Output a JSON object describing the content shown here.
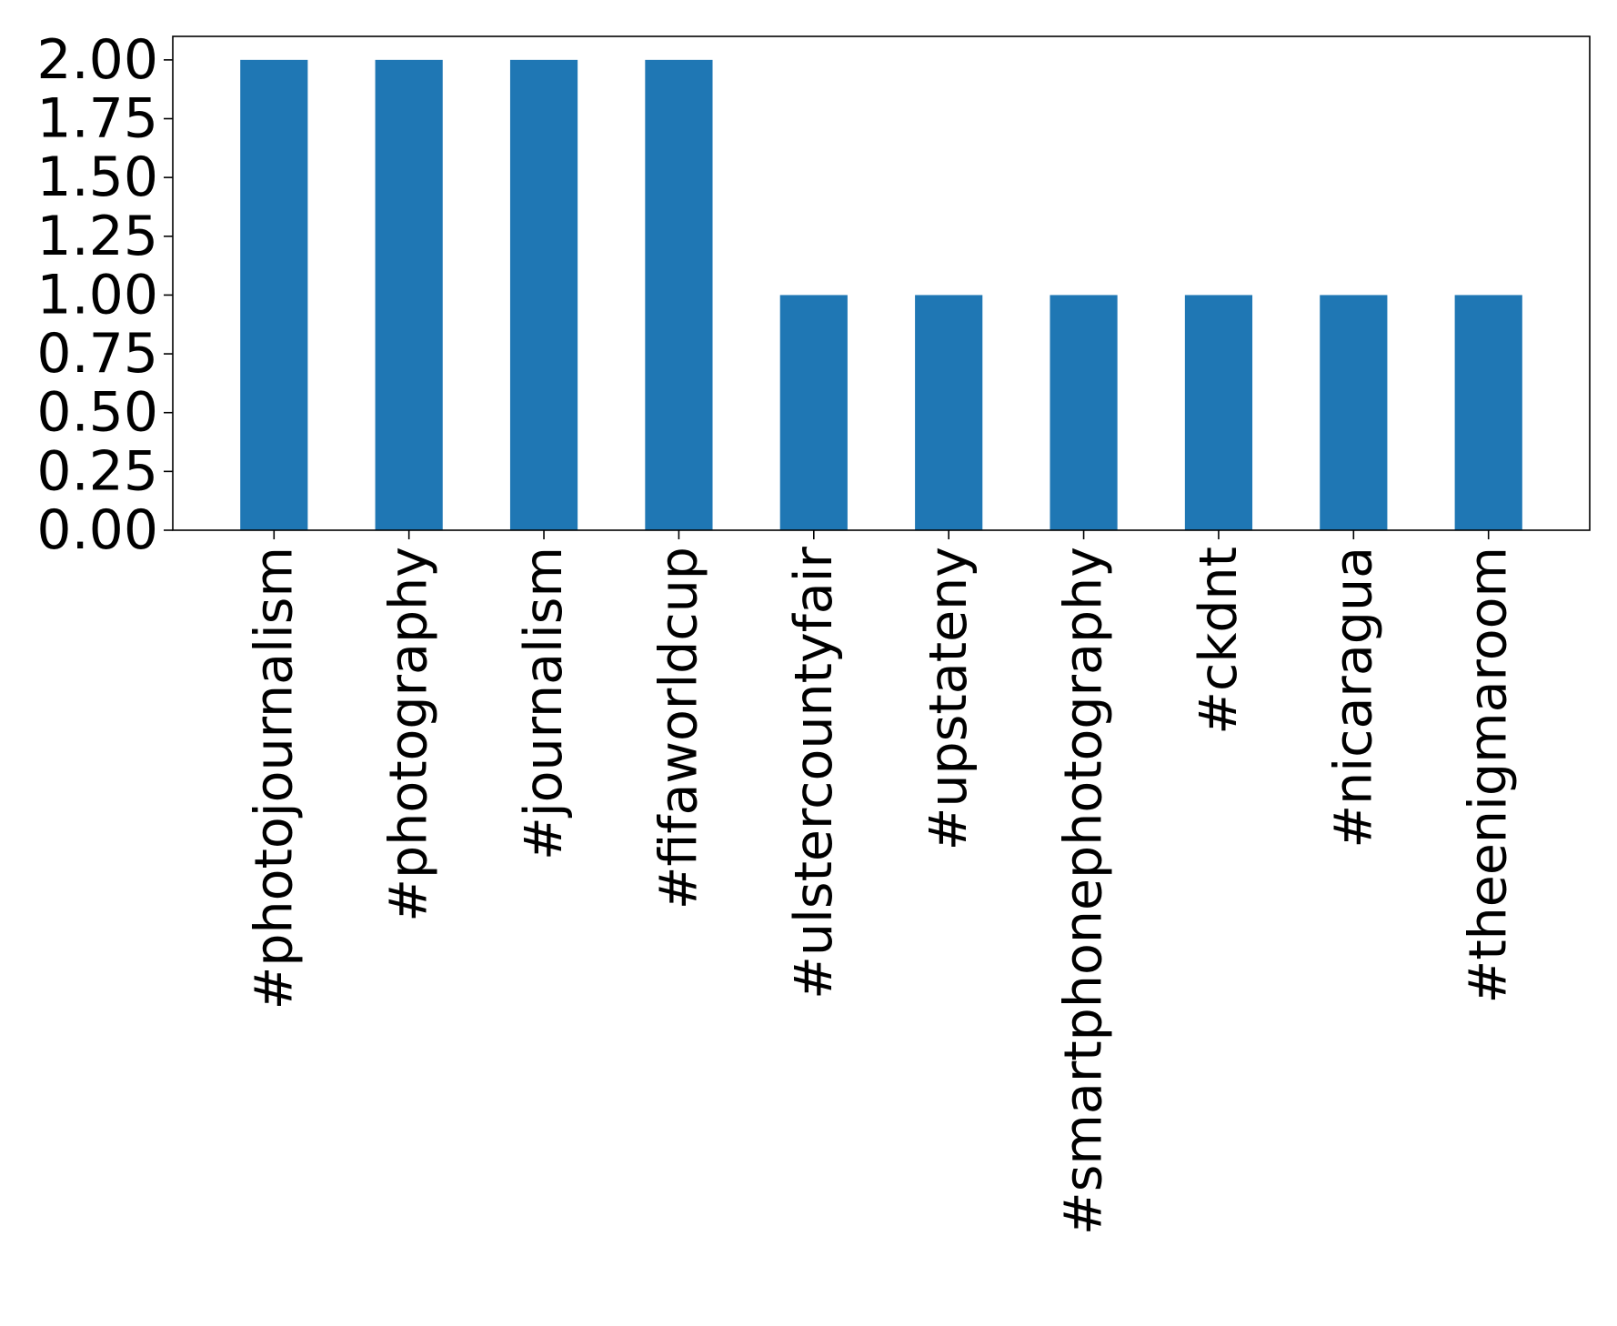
{
  "chart_data": {
    "type": "bar",
    "title": "",
    "xlabel": "",
    "ylabel": "",
    "categories": [
      "#photojournalism",
      "#photography",
      "#journalism",
      "#fifaworldcup",
      "#ulstercountyfair",
      "#upstateny",
      "#smartphonephotography",
      "#ckdnt",
      "#nicaragua",
      "#theenigmaroom"
    ],
    "values": [
      2,
      2,
      2,
      2,
      1,
      1,
      1,
      1,
      1,
      1
    ],
    "yticks": [
      "0.00",
      "0.25",
      "0.50",
      "0.75",
      "1.00",
      "1.25",
      "1.50",
      "1.75",
      "2.00"
    ],
    "ylim": [
      0,
      2.1
    ],
    "grid": false,
    "legend": "none",
    "bar_color": "#1f77b4"
  }
}
